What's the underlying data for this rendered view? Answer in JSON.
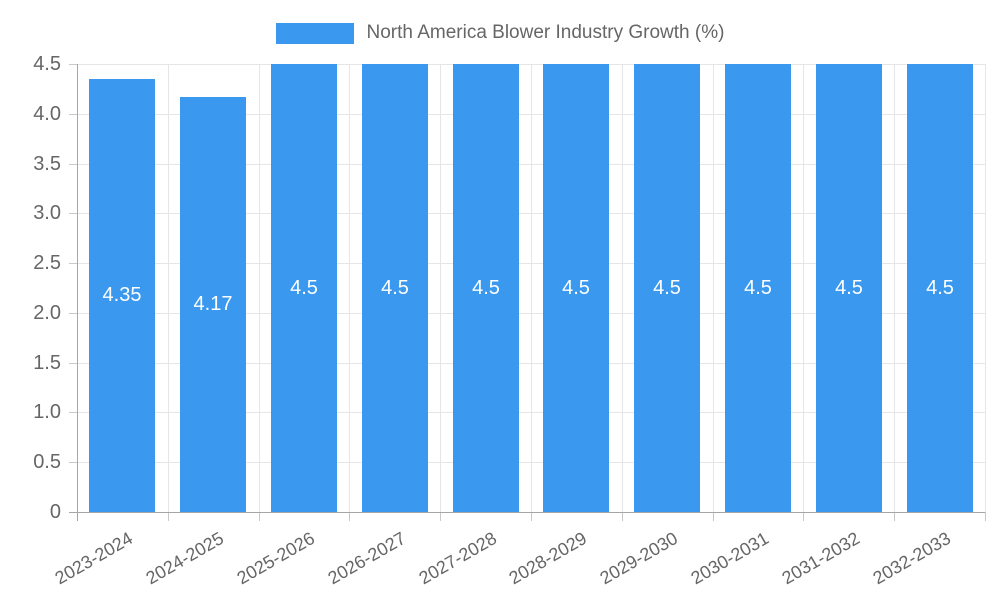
{
  "chart_data": {
    "type": "bar",
    "title": "",
    "legend": {
      "label": "North America Blower Industry Growth (%)",
      "position": "top"
    },
    "categories": [
      "2023-2024",
      "2024-2025",
      "2025-2026",
      "2026-2027",
      "2027-2028",
      "2028-2029",
      "2029-2030",
      "2030-2031",
      "2031-2032",
      "2032-2033"
    ],
    "values": [
      4.35,
      4.17,
      4.5,
      4.5,
      4.5,
      4.5,
      4.5,
      4.5,
      4.5,
      4.5
    ],
    "bar_labels": [
      "4.35",
      "4.17",
      "4.5",
      "4.5",
      "4.5",
      "4.5",
      "4.5",
      "4.5",
      "4.5",
      "4.5"
    ],
    "xlabel": "",
    "ylabel": "",
    "ylim": [
      0,
      4.5
    ],
    "ytick_step": 0.5,
    "yticks": [
      "0",
      "0.5",
      "1.0",
      "1.5",
      "2.0",
      "2.5",
      "3.0",
      "3.5",
      "4.0",
      "4.5"
    ],
    "grid": true,
    "x_labels_rotation_deg": -30,
    "colors": {
      "bar": "#3a99ee",
      "grid": "#e6e6e6",
      "axis": "#a6a6a6",
      "tick": "#c9c9c9",
      "tick_text": "#666666",
      "legend_text": "#666666",
      "bar_label_text": "#ffffff",
      "background": "#ffffff"
    }
  }
}
